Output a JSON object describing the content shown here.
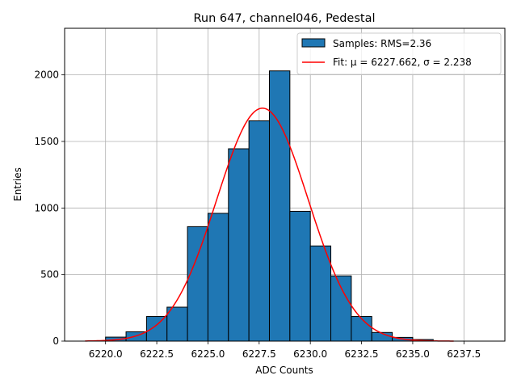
{
  "chart_data": {
    "type": "bar",
    "title": "Run 647, channel046, Pedestal",
    "xlabel": "ADC Counts",
    "ylabel": "Entries",
    "xlim": [
      6218.0,
      6239.5
    ],
    "ylim": [
      0,
      2350
    ],
    "xticks": [
      6220.0,
      6222.5,
      6225.0,
      6227.5,
      6230.0,
      6232.5,
      6235.0,
      6237.5
    ],
    "xtick_labels": [
      "6220.0",
      "6222.5",
      "6225.0",
      "6227.5",
      "6230.0",
      "6232.5",
      "6235.0",
      "6237.5"
    ],
    "yticks": [
      0,
      500,
      1000,
      1500,
      2000
    ],
    "ytick_labels": [
      "0",
      "500",
      "1000",
      "1500",
      "2000"
    ],
    "grid": true,
    "legend_position": "top-right",
    "bin_width": 1,
    "histogram": {
      "name": "Samples: RMS=2.36",
      "color": "#1f77b4",
      "edgecolor": "#000000",
      "bin_left_edges": [
        6219,
        6220,
        6221,
        6222,
        6223,
        6224,
        6225,
        6226,
        6227,
        6228,
        6229,
        6230,
        6231,
        6232,
        6233,
        6234,
        6235,
        6236,
        6237,
        6238
      ],
      "counts": [
        0,
        30,
        70,
        185,
        255,
        860,
        960,
        1445,
        1655,
        2030,
        975,
        715,
        490,
        185,
        65,
        28,
        12,
        0,
        0,
        0
      ]
    },
    "fit": {
      "name": "Fit: μ = 6227.662, σ = 2.238",
      "color": "#ff0000",
      "mu": 6227.662,
      "sigma": 2.238,
      "amplitude": 1750,
      "x_range": [
        6219,
        6237
      ]
    }
  }
}
